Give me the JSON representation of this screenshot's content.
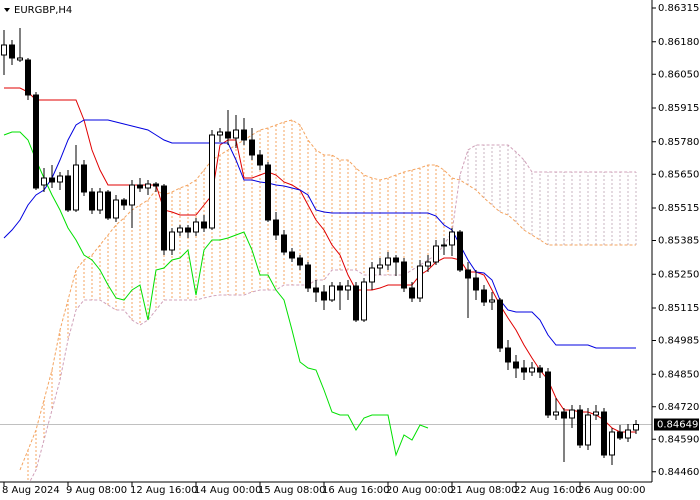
{
  "chart_data": {
    "type": "candlestick",
    "title": "EURGBP,H4",
    "categories": [
      "8 Aug 2024",
      null,
      null,
      null,
      null,
      null,
      null,
      null,
      "9 Aug 08:00",
      null,
      null,
      null,
      null,
      null,
      null,
      null,
      "12 Aug 16:00",
      null,
      null,
      null,
      null,
      null,
      null,
      null,
      "14 Aug 00:00",
      null,
      null,
      null,
      null,
      null,
      null,
      null,
      "15 Aug 08:00",
      null,
      null,
      null,
      null,
      null,
      null,
      null,
      "16 Aug 16:00",
      null,
      null,
      null,
      null,
      null,
      null,
      null,
      "20 Aug 00:00",
      null,
      null,
      null,
      null,
      null,
      null,
      null,
      "21 Aug 08:00",
      null,
      null,
      null,
      null,
      null,
      null,
      null,
      "22 Aug 16:00",
      null,
      null,
      null,
      null,
      null,
      null,
      null,
      "26 Aug 00:00",
      null,
      null,
      null,
      null,
      null,
      null,
      null
    ],
    "open": [
      0.86127,
      0.86167,
      0.86107,
      0.86107,
      0.85967,
      0.85607,
      0.85635,
      0.85619,
      0.85643,
      0.85507,
      0.85687,
      0.85579,
      0.85507,
      0.85579,
      0.85475,
      0.85547,
      0.85527,
      0.85607,
      0.85595,
      0.85611,
      0.85603,
      0.85347,
      0.85419,
      0.85435,
      0.85419,
      0.85459,
      0.85435,
      0.85807,
      0.85819,
      0.85795,
      0.85827,
      0.85787,
      0.85727,
      0.85687,
      0.85467,
      0.85407,
      0.85339,
      0.85315,
      0.85287,
      0.85195,
      0.85179,
      0.85147,
      0.85203,
      0.85187,
      0.85203,
      0.85067,
      0.85219,
      0.85275,
      0.85287,
      0.85315,
      0.85299,
      0.85195,
      0.85155,
      0.85283,
      0.85299,
      0.85363,
      0.85367,
      0.85419,
      0.85267,
      0.85235,
      0.85187,
      0.85139,
      0.85147,
      0.84955,
      0.84899,
      0.84875,
      0.84859,
      0.84875,
      0.84859,
      0.84687,
      0.84699,
      0.84675,
      0.84707,
      0.84567,
      0.84687,
      0.84699,
      0.84527,
      0.84619,
      0.84595,
      0.84627
    ],
    "high": [
      0.86227,
      0.86187,
      0.86235,
      0.86115,
      0.85979,
      0.85675,
      0.85687,
      0.85659,
      0.85667,
      0.85767,
      0.85707,
      0.85595,
      0.85595,
      0.85587,
      0.85567,
      0.85555,
      0.85627,
      0.85635,
      0.85627,
      0.85619,
      0.85611,
      0.85435,
      0.85447,
      0.85447,
      0.85475,
      0.85487,
      0.85827,
      0.85835,
      0.85907,
      0.85887,
      0.85875,
      0.85835,
      0.85747,
      0.85699,
      0.85499,
      0.85427,
      0.85355,
      0.85327,
      0.85299,
      0.85227,
      0.85207,
      0.85219,
      0.85219,
      0.85227,
      0.85219,
      0.85235,
      0.85299,
      0.85315,
      0.85339,
      0.85327,
      0.85315,
      0.85219,
      0.85307,
      0.85327,
      0.85387,
      0.85395,
      0.85435,
      0.85427,
      0.85299,
      0.85267,
      0.85207,
      0.85179,
      0.85155,
      0.84987,
      0.84927,
      0.84907,
      0.84899,
      0.84887,
      0.84875,
      0.84755,
      0.84715,
      0.84727,
      0.84727,
      0.84715,
      0.84727,
      0.84715,
      0.84635,
      0.84647,
      0.84651,
      0.84667
    ],
    "low": [
      0.86047,
      0.86087,
      0.86099,
      0.85947,
      0.85587,
      0.85579,
      0.85595,
      0.85587,
      0.85499,
      0.85499,
      0.85563,
      0.85491,
      0.85491,
      0.85467,
      0.85459,
      0.85507,
      0.85435,
      0.85579,
      0.85567,
      0.85579,
      0.85327,
      0.85327,
      0.85403,
      0.85395,
      0.85403,
      0.85419,
      0.85427,
      0.85779,
      0.85767,
      0.85755,
      0.85767,
      0.85707,
      0.85667,
      0.85459,
      0.85387,
      0.85327,
      0.85299,
      0.85267,
      0.85179,
      0.85139,
      0.85107,
      0.85139,
      0.85107,
      0.85147,
      0.85059,
      0.85059,
      0.85187,
      0.85247,
      0.85267,
      0.85243,
      0.85179,
      0.85139,
      0.85139,
      0.85259,
      0.85287,
      0.85327,
      0.85323,
      0.85259,
      0.85075,
      0.85147,
      0.85123,
      0.85107,
      0.84939,
      0.84867,
      0.84835,
      0.84827,
      0.84843,
      0.84835,
      0.84675,
      0.84667,
      0.84499,
      0.84635,
      0.84555,
      0.84547,
      0.84667,
      0.84515,
      0.84487,
      0.84587,
      0.84579,
      0.84611
    ],
    "close": [
      0.86167,
      0.86115,
      0.86115,
      0.85967,
      0.85595,
      0.85635,
      0.85619,
      0.85643,
      0.85507,
      0.85687,
      0.85579,
      0.85507,
      0.85579,
      0.85475,
      0.85547,
      0.85527,
      0.85607,
      0.85595,
      0.85611,
      0.85603,
      0.85347,
      0.85419,
      0.85435,
      0.85419,
      0.85459,
      0.85435,
      0.85807,
      0.85819,
      0.85795,
      0.85827,
      0.85787,
      0.85727,
      0.85687,
      0.85467,
      0.85407,
      0.85339,
      0.85315,
      0.85287,
      0.85195,
      0.85179,
      0.85147,
      0.85203,
      0.85187,
      0.85203,
      0.85067,
      0.85219,
      0.85275,
      0.85287,
      0.85315,
      0.85299,
      0.85195,
      0.85155,
      0.85283,
      0.85299,
      0.85363,
      0.85367,
      0.85419,
      0.85267,
      0.85235,
      0.85187,
      0.85139,
      0.85147,
      0.84955,
      0.84899,
      0.84875,
      0.84859,
      0.84875,
      0.84859,
      0.84687,
      0.84699,
      0.84675,
      0.84707,
      0.84567,
      0.84687,
      0.84699,
      0.84527,
      0.84619,
      0.84595,
      0.84627,
      0.84649
    ],
    "up_color": "#ffffff",
    "down_color": "#000000",
    "series": [
      {
        "color": "#e00000",
        "values": [
          0.85995,
          0.85995,
          0.85995,
          0.85979,
          0.85947,
          0.85947,
          0.85947,
          0.85947,
          0.85947,
          0.85947,
          0.85867,
          0.85747,
          0.85667,
          0.85607,
          0.85607,
          0.85607,
          0.85607,
          0.85607,
          0.85607,
          0.85607,
          0.85507,
          0.85499,
          0.85487,
          0.85487,
          0.85487,
          0.85527,
          0.85567,
          0.85767,
          0.85787,
          0.85787,
          0.85635,
          0.85635,
          0.85647,
          0.85659,
          0.85647,
          0.85619,
          0.85607,
          0.85587,
          0.85527,
          0.85467,
          0.85427,
          0.85367,
          0.85327,
          0.85247,
          0.85187,
          0.85187,
          0.85187,
          0.85195,
          0.85207,
          0.85207,
          0.85207,
          0.85207,
          0.85247,
          0.85267,
          0.85299,
          0.85315,
          0.85315,
          0.85307,
          0.85259,
          0.85259,
          0.85247,
          0.85187,
          0.85127,
          0.85075,
          0.85027,
          0.84967,
          0.84915,
          0.84867,
          0.84827,
          0.84755,
          0.84707,
          0.84707,
          0.84699,
          0.84699,
          0.84687,
          0.84667,
          0.84635,
          0.84619,
          0.84619,
          0.84619
        ]
      },
      {
        "color": "#0000e0",
        "values": [
          0.85395,
          0.85427,
          0.85467,
          0.85527,
          0.85567,
          0.85587,
          0.85635,
          0.85707,
          0.85787,
          0.85847,
          0.85867,
          0.85867,
          0.85867,
          0.85867,
          0.85859,
          0.85851,
          0.85843,
          0.85835,
          0.85827,
          0.85807,
          0.85787,
          0.85775,
          0.85775,
          0.85775,
          0.85775,
          0.85775,
          0.85775,
          0.85775,
          0.85775,
          0.85707,
          0.85627,
          0.85627,
          0.85619,
          0.85615,
          0.85607,
          0.85603,
          0.85595,
          0.85587,
          0.85567,
          0.85507,
          0.85499,
          0.85495,
          0.85495,
          0.85495,
          0.85495,
          0.85495,
          0.85495,
          0.85495,
          0.85495,
          0.85495,
          0.85495,
          0.85495,
          0.85495,
          0.85495,
          0.85483,
          0.85447,
          0.85427,
          0.85367,
          0.85307,
          0.85259,
          0.85255,
          0.85227,
          0.85147,
          0.85107,
          0.85099,
          0.85099,
          0.85099,
          0.85067,
          0.85007,
          0.84967,
          0.84967,
          0.84967,
          0.84967,
          0.84967,
          0.84955,
          0.84955,
          0.84955,
          0.84955,
          0.84955,
          0.84955
        ]
      },
      {
        "color": "#00e000",
        "values": [
          0.85807,
          0.85819,
          0.85819,
          0.85787,
          0.85707,
          0.85635,
          0.85567,
          0.85507,
          0.85435,
          0.85387,
          0.85327,
          0.85307,
          0.85267,
          0.85207,
          0.85155,
          0.85147,
          0.85187,
          0.85207,
          0.85067,
          0.85267,
          0.85275,
          0.85307,
          0.85315,
          0.85347,
          0.85167,
          0.85347,
          0.85387,
          0.85387,
          0.85395,
          0.85407,
          0.85419,
          0.85347,
          0.85247,
          0.85247,
          0.85187,
          0.85147,
          0.85027,
          0.84899,
          0.84875,
          0.84867,
          0.84787,
          0.84699,
          0.84687,
          0.84687,
          0.84627,
          0.84675,
          0.84687,
          0.84687,
          0.84687,
          0.84527,
          0.84607,
          0.84587,
          0.84647,
          0.84635,
          null,
          null,
          null,
          null,
          null,
          null,
          null,
          null,
          null,
          null,
          null,
          null,
          null,
          null,
          null,
          null,
          null,
          null,
          null,
          null,
          null,
          null,
          null,
          null,
          null,
          null
        ]
      }
    ],
    "cloud": {
      "fill_colors": [
        "#f4a460",
        "#c8b4c0"
      ],
      "lines": [
        {
          "color": "#f4a460",
          "values": [
            null,
            null,
            0.84467,
            0.84547,
            0.84627,
            0.84747,
            0.84867,
            0.85027,
            0.85147,
            0.85267,
            0.85307,
            0.85327,
            0.85367,
            0.85407,
            0.85447,
            0.85475,
            0.85507,
            0.85527,
            0.85547,
            0.85587,
            0.85567,
            0.85579,
            0.85595,
            0.85607,
            0.85627,
            0.85667,
            0.85707,
            0.85727,
            0.85747,
            0.85767,
            0.85787,
            0.85807,
            0.85827,
            0.85835,
            0.85847,
            0.85859,
            0.85867,
            0.85847,
            0.85787,
            0.85747,
            0.85727,
            0.85727,
            0.85707,
            0.85707,
            0.85675,
            0.85647,
            0.85635,
            0.85627,
            0.85635,
            0.85647,
            0.85659,
            0.85667,
            0.85675,
            0.85687,
            0.85687,
            0.85667,
            0.85635,
            0.85627,
            0.85607,
            0.85587,
            0.85555,
            0.85527,
            0.85499,
            0.85487,
            0.85459,
            0.85427,
            0.85407,
            0.85387,
            0.85367,
            0.85367,
            0.85367,
            0.85367,
            0.85367,
            0.85367,
            0.85367,
            0.85367,
            0.85367,
            0.85367,
            0.85367,
            0.85367
          ]
        },
        {
          "color": "#d0a0b8",
          "values": [
            null,
            null,
            null,
            0.84407,
            0.84467,
            0.84587,
            0.84707,
            0.84827,
            0.84987,
            0.85107,
            0.85147,
            0.85147,
            0.85147,
            0.85127,
            0.85107,
            0.85107,
            0.85067,
            0.85047,
            0.85067,
            0.85107,
            0.85147,
            0.85147,
            0.85147,
            0.85147,
            0.85147,
            0.85155,
            0.85163,
            0.85167,
            0.85167,
            0.85167,
            0.85167,
            0.85179,
            0.85187,
            0.85187,
            0.85187,
            0.85207,
            0.85207,
            0.85207,
            0.85207,
            0.85227,
            0.85227,
            0.85267,
            0.85267,
            0.85267,
            0.85267,
            0.85247,
            0.85247,
            0.85247,
            0.85247,
            0.85247,
            0.85247,
            0.85267,
            0.85287,
            0.85307,
            0.85327,
            0.85367,
            0.85419,
            0.85647,
            0.85747,
            0.85767,
            0.85767,
            0.85767,
            0.85767,
            0.85767,
            0.85739,
            0.85707,
            0.85659,
            0.85659,
            0.85659,
            0.85659,
            0.85659,
            0.85659,
            0.85659,
            0.85659,
            0.85659,
            0.85659,
            0.85659,
            0.85659,
            0.85659,
            0.85659
          ]
        }
      ]
    },
    "last_price": 0.84649,
    "ylim": [
      0.84419,
      0.86347
    ],
    "yticks": [
      0.86315,
      {
        "value": 0.8618,
        "label": "0.86180"
      },
      {
        "value": 0.8605,
        "label": "0.86050"
      },
      0.85915,
      {
        "value": 0.8578,
        "label": "0.85780"
      },
      {
        "value": 0.8565,
        "label": "0.85650"
      },
      0.85515,
      0.85385,
      {
        "value": 0.8525,
        "label": "0.85250"
      },
      0.85115,
      0.84985,
      {
        "value": 0.8485,
        "label": "0.84850"
      },
      {
        "value": 0.8472,
        "label": "0.84720"
      },
      {
        "value": 0.8459,
        "label": "0.84590"
      },
      {
        "value": 0.8446,
        "label": "0.84460"
      }
    ]
  }
}
